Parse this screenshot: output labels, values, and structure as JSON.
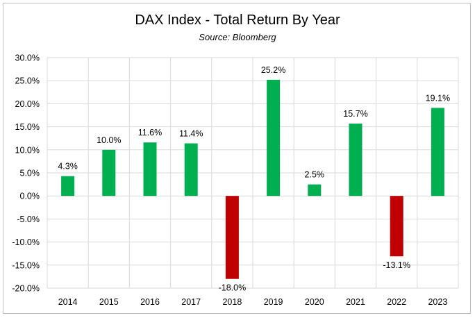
{
  "chart_data": {
    "type": "bar",
    "title": "DAX Index - Total Return By Year",
    "subtitle": "Source: Bloomberg",
    "xlabel": "",
    "ylabel": "",
    "categories": [
      "2014",
      "2015",
      "2016",
      "2017",
      "2018",
      "2019",
      "2020",
      "2021",
      "2022",
      "2023"
    ],
    "values": [
      4.3,
      10.0,
      11.6,
      11.4,
      -18.0,
      25.2,
      2.5,
      15.7,
      -13.1,
      19.1
    ],
    "data_labels": [
      "4.3%",
      "10.0%",
      "11.6%",
      "11.4%",
      "-18.0%",
      "25.2%",
      "2.5%",
      "15.7%",
      "-13.1%",
      "19.1%"
    ],
    "ylim": [
      -20,
      30
    ],
    "y_ticks": [
      30,
      25,
      20,
      15,
      10,
      5,
      0,
      -5,
      -10,
      -15,
      -20
    ],
    "y_tick_labels": [
      "30.0%",
      "25.0%",
      "20.0%",
      "15.0%",
      "10.0%",
      "5.0%",
      "0.0%",
      "-5.0%",
      "-10.0%",
      "-15.0%",
      "-20.0%"
    ],
    "grid": true,
    "legend": "none",
    "colors": {
      "positive": "#00b050",
      "negative": "#c00000",
      "grid": "#d9d9d9",
      "axis": "#bfbfbf"
    }
  }
}
